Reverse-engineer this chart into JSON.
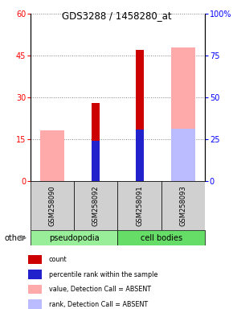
{
  "title": "GDS3288 / 1458280_at",
  "samples": [
    "GSM258090",
    "GSM258092",
    "GSM258091",
    "GSM258093"
  ],
  "groups": [
    "pseudopodia",
    "pseudopodia",
    "cell bodies",
    "cell bodies"
  ],
  "count_values": [
    0,
    28,
    47,
    0
  ],
  "rank_values": [
    0,
    24,
    30.5,
    0
  ],
  "absent_value_values": [
    18,
    0,
    0,
    48
  ],
  "absent_rank_values": [
    0,
    0,
    0,
    31
  ],
  "ylim_left": [
    0,
    60
  ],
  "ylim_right": [
    0,
    100
  ],
  "yticks_left": [
    0,
    15,
    30,
    45,
    60
  ],
  "yticks_right": [
    0,
    25,
    50,
    75,
    100
  ],
  "count_color": "#cc0000",
  "rank_color": "#2222cc",
  "absent_value_color": "#ffaaaa",
  "absent_rank_color": "#bbbbff",
  "pseudopodia_color": "#99ee99",
  "cell_bodies_color": "#66dd66",
  "legend_items": [
    {
      "label": "count",
      "color": "#cc0000"
    },
    {
      "label": "percentile rank within the sample",
      "color": "#2222cc"
    },
    {
      "label": "value, Detection Call = ABSENT",
      "color": "#ffaaaa"
    },
    {
      "label": "rank, Detection Call = ABSENT",
      "color": "#bbbbff"
    }
  ]
}
